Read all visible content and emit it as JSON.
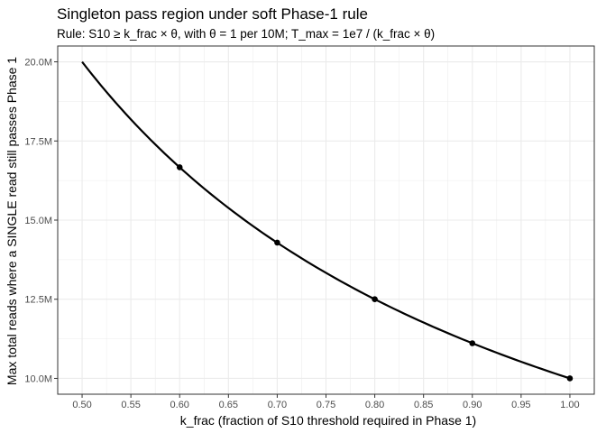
{
  "chart_data": {
    "type": "line",
    "title": "Singleton pass region under soft Phase-1 rule",
    "subtitle": "Rule: S10 ≥ k_frac × θ, with θ = 1 per 10M; T_max = 1e7 / (k_frac × θ)",
    "xlabel": "k_frac (fraction of S10 threshold required in Phase 1)",
    "ylabel": "Max total reads where a SINGLE read still passes Phase 1",
    "xlim": [
      0.475,
      1.025
    ],
    "ylim": [
      9.5,
      20.5
    ],
    "x_ticks": [
      0.5,
      0.55,
      0.6,
      0.65,
      0.7,
      0.75,
      0.8,
      0.85,
      0.9,
      0.95,
      1.0
    ],
    "x_tick_labels": [
      "0.50",
      "0.55",
      "0.60",
      "0.65",
      "0.70",
      "0.75",
      "0.80",
      "0.85",
      "0.90",
      "0.95",
      "1.00"
    ],
    "y_ticks": [
      10,
      12.5,
      15,
      17.5,
      20
    ],
    "y_tick_labels": [
      "10.0M",
      "12.5M",
      "15.0M",
      "17.5M",
      "20.0M"
    ],
    "y_unit": "millions of reads",
    "grid": true,
    "legend": "none",
    "series": [
      {
        "style": "line",
        "formula": "T_max = 1e7 / (k_frac × θ)",
        "x": [
          0.5,
          0.55,
          0.6,
          0.65,
          0.7,
          0.75,
          0.8,
          0.85,
          0.9,
          0.95,
          1.0
        ],
        "y": [
          20.0,
          18.18,
          16.67,
          15.38,
          14.29,
          13.33,
          12.5,
          11.76,
          11.11,
          10.53,
          10.0
        ]
      },
      {
        "style": "points",
        "x": [
          0.6,
          0.7,
          0.8,
          0.9,
          1.0
        ],
        "y": [
          16.67,
          14.29,
          12.5,
          11.11,
          10.0
        ]
      }
    ],
    "colors": {
      "line": "#000000",
      "points": "#000000",
      "grid": "#ebebeb",
      "panel_border": "#333333"
    }
  }
}
